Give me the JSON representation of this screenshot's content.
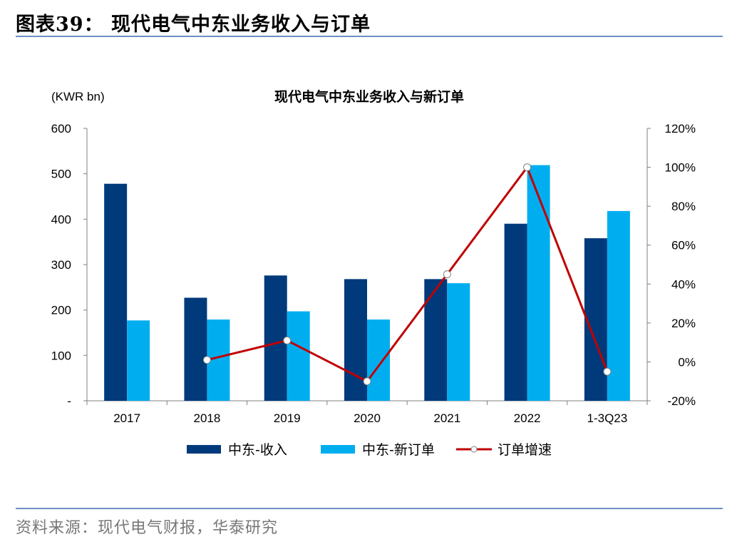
{
  "figure_title": "图表39：  现代电气中东业务收入与订单",
  "source": "资料来源：现代电气财报，华泰研究",
  "chart_data": {
    "type": "bar",
    "title": "现代电气中东业务收入与新订单",
    "unit_label": "(KWR bn)",
    "categories": [
      "2017",
      "2018",
      "2019",
      "2020",
      "2021",
      "2022",
      "1-3Q23"
    ],
    "series": [
      {
        "name": "中东-收入",
        "type": "bar",
        "axis": "left",
        "color": "#003a7a",
        "values": [
          478,
          227,
          276,
          268,
          268,
          390,
          358
        ]
      },
      {
        "name": "中东-新订单",
        "type": "bar",
        "axis": "left",
        "color": "#00aef0",
        "values": [
          177,
          179,
          197,
          179,
          259,
          519,
          418
        ]
      }
    ],
    "line_series": {
      "name": "订单增速",
      "type": "line",
      "axis": "right",
      "color": "#c00000",
      "marker_fill": "#ffffff",
      "values": [
        null,
        1,
        11,
        -10,
        45,
        100,
        -5
      ]
    },
    "left_axis": {
      "ylim": [
        0,
        600
      ],
      "ticks": [
        0,
        100,
        200,
        300,
        400,
        500,
        600
      ],
      "tick_labels": [
        "-",
        "100",
        "200",
        "300",
        "400",
        "500",
        "600"
      ]
    },
    "right_axis": {
      "ylim": [
        -20,
        120
      ],
      "ticks": [
        -20,
        0,
        20,
        40,
        60,
        80,
        100,
        120
      ],
      "tick_labels": [
        "-20%",
        "0%",
        "20%",
        "40%",
        "60%",
        "80%",
        "100%",
        "120%"
      ]
    },
    "grid": false,
    "legend": "bottom"
  }
}
